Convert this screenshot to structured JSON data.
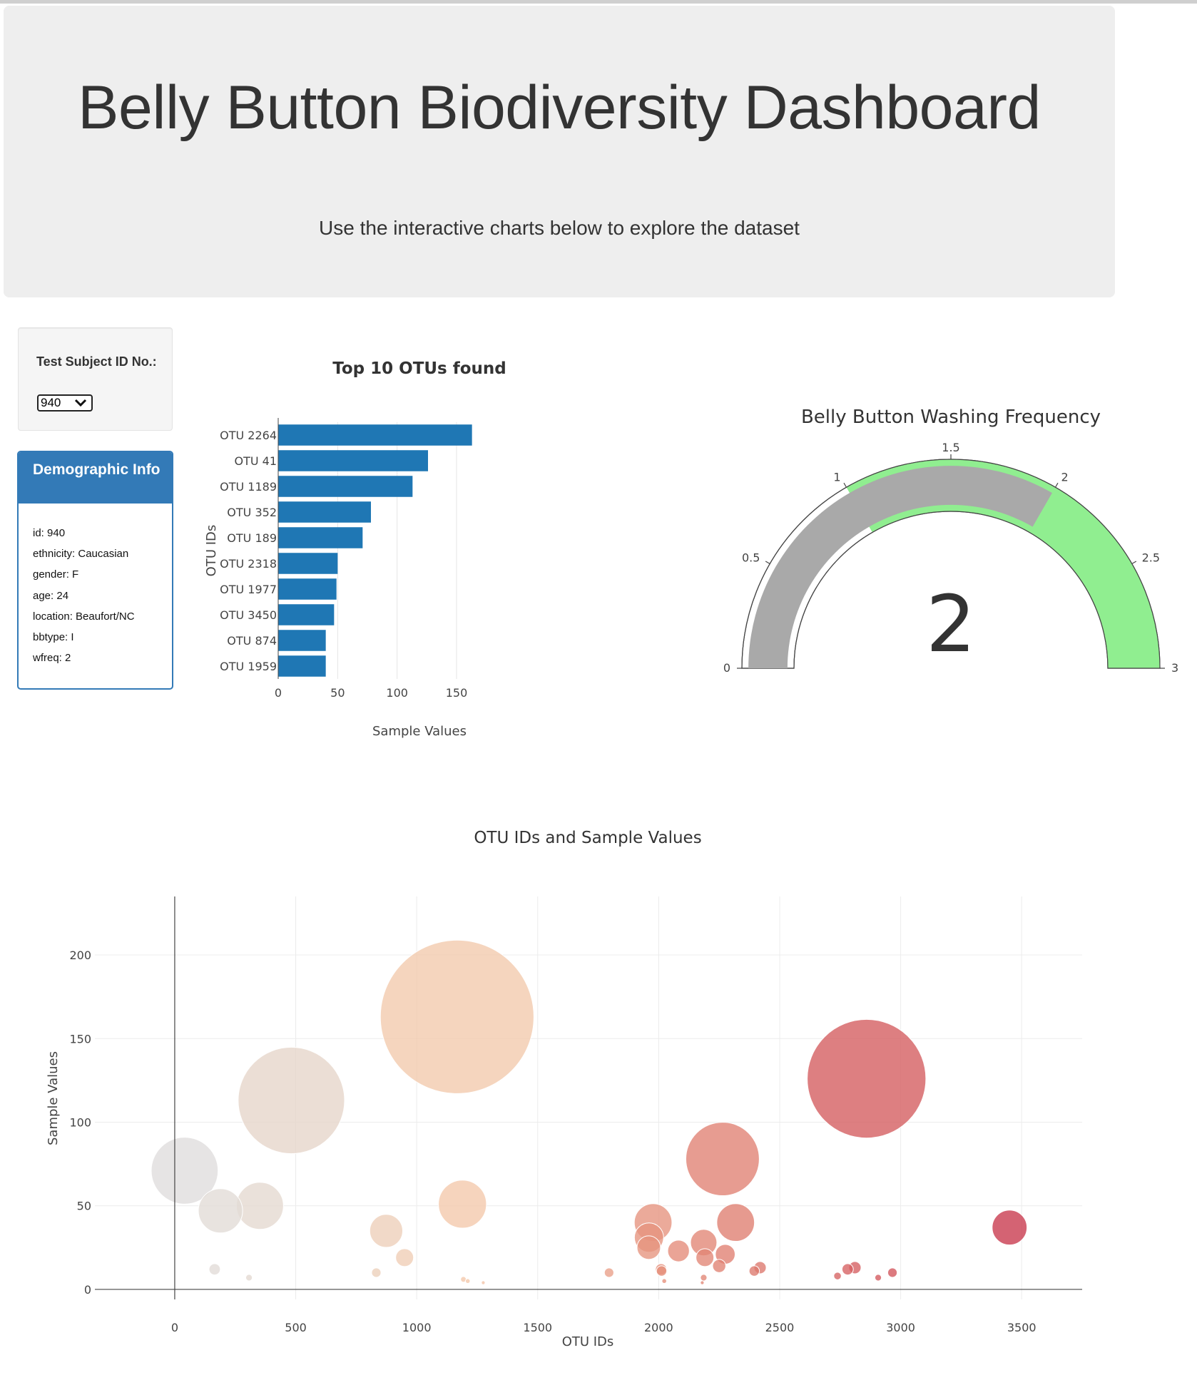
{
  "header": {
    "title": "Belly Button Biodiversity Dashboard",
    "subtitle": "Use the interactive charts below to explore the dataset"
  },
  "selector": {
    "label": "Test Subject ID No.:",
    "selected": "940"
  },
  "demographics": {
    "title": "Demographic Info",
    "rows": [
      "id: 940",
      "ethnicity: Caucasian",
      "gender: F",
      "age: 24",
      "location: Beaufort/NC",
      "bbtype: I",
      "wfreq: 2"
    ]
  },
  "colors": {
    "bar": "#1f77b4",
    "panel": "#337ab7",
    "gauge_bar": "#a9a9a9",
    "gauge_band": "#90ee90"
  },
  "chart_data": [
    {
      "type": "bar",
      "orientation": "horizontal",
      "title": "Top 10 OTUs found",
      "xlabel": "Sample Values",
      "ylabel": "OTU IDs",
      "categories": [
        "OTU 2264",
        "OTU 41",
        "OTU 1189",
        "OTU 352",
        "OTU 189",
        "OTU 2318",
        "OTU 1977",
        "OTU 3450",
        "OTU 874",
        "OTU 1959"
      ],
      "values": [
        163,
        126,
        113,
        78,
        71,
        50,
        49,
        47,
        40,
        40
      ],
      "xlim": [
        0,
        165
      ],
      "xticks": [
        0,
        50,
        100,
        150
      ],
      "grid": true
    },
    {
      "type": "gauge",
      "title": "Belly Button Washing Frequency",
      "value": 2,
      "display_value": "2",
      "range": [
        0,
        3
      ],
      "ticks": [
        "0",
        "0.5",
        "1",
        "1.5",
        "2",
        "2.5",
        "3"
      ],
      "bands": [
        {
          "from": 1,
          "to": 3,
          "color": "#90ee90"
        }
      ],
      "bar_color": "#a9a9a9"
    },
    {
      "type": "scatter",
      "style": "bubble",
      "title": "OTU IDs and Sample Values",
      "xlabel": "OTU IDs",
      "ylabel": "Sample Values",
      "xlim": [
        -330,
        3750
      ],
      "ylim": [
        -6,
        235
      ],
      "xticks": [
        0,
        500,
        1000,
        1500,
        2000,
        2500,
        3000,
        3500
      ],
      "yticks": [
        0,
        50,
        100,
        150,
        200
      ],
      "grid": true,
      "colorscale": "reds, light to dark by OTU ID",
      "x": [
        41,
        189,
        352,
        482,
        874,
        950,
        1189,
        1167,
        2264,
        2859,
        1977,
        2318,
        3450,
        1959,
        1960,
        2082,
        2186,
        2191,
        2275,
        2250,
        2010,
        2012,
        1795,
        2419,
        2395,
        2811,
        2781,
        2966,
        2739,
        2907,
        165,
        307,
        833,
        1193,
        1211,
        1275,
        2186,
        2180,
        2023
      ],
      "y": [
        71,
        47,
        50,
        113,
        35,
        19,
        51,
        163,
        78,
        126,
        40,
        40,
        37,
        25,
        31,
        23,
        28,
        19,
        21,
        14,
        12,
        11,
        10,
        13,
        11,
        13,
        12,
        10,
        8,
        7,
        12,
        7,
        10,
        6,
        5,
        4,
        7,
        4,
        5
      ],
      "sizes": [
        71,
        47,
        50,
        113,
        35,
        19,
        51,
        163,
        78,
        126,
        40,
        40,
        37,
        25,
        31,
        23,
        28,
        19,
        21,
        14,
        12,
        11,
        10,
        13,
        11,
        13,
        12,
        10,
        8,
        7,
        12,
        7,
        10,
        6,
        5,
        4,
        7,
        4,
        5
      ]
    }
  ]
}
